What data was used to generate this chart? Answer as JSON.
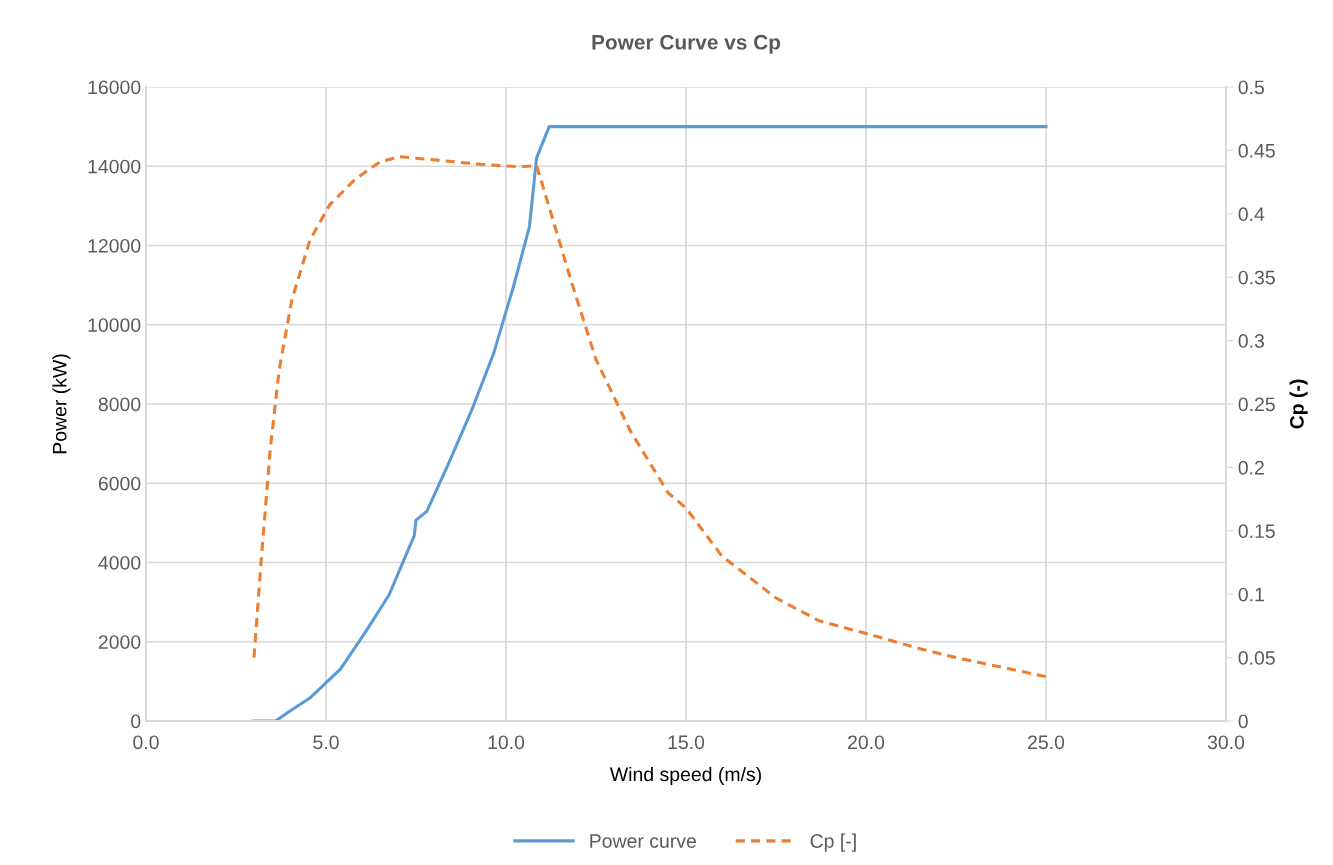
{
  "chart_data": {
    "type": "line",
    "title": "Power Curve vs Cp",
    "xlabel": "Wind speed (m/s)",
    "ylabel": "Power (kW)",
    "y2label": "Cp (-)",
    "xlim": [
      0,
      30
    ],
    "xticks": [
      {
        "value": 0,
        "label": "0.0"
      },
      {
        "value": 5,
        "label": "5.0"
      },
      {
        "value": 10,
        "label": "10.0"
      },
      {
        "value": 15,
        "label": "15.0"
      },
      {
        "value": 20,
        "label": "20.0"
      },
      {
        "value": 25,
        "label": "25.0"
      },
      {
        "value": 30,
        "label": "30.0"
      }
    ],
    "ylim": [
      0,
      16000
    ],
    "yticks": [
      0,
      2000,
      4000,
      6000,
      8000,
      10000,
      12000,
      14000,
      16000
    ],
    "y2lim": [
      0,
      0.5
    ],
    "y2ticks": [
      0,
      0.05,
      0.1,
      0.15,
      0.2,
      0.25,
      0.3,
      0.35,
      0.4,
      0.45,
      0.5
    ],
    "grid": true,
    "legend": "bottom",
    "series": [
      {
        "name": "Power curve",
        "color": "#5b9bd5",
        "line_style": "solid",
        "x": [
          3.0,
          3.6,
          4.0,
          4.55,
          5.4,
          6.1,
          6.75,
          7.2,
          7.45,
          7.5,
          7.8,
          8.4,
          9.05,
          9.65,
          10.2,
          10.65,
          10.85,
          11.2,
          25
        ],
        "values": [
          0,
          0,
          250,
          580,
          1310,
          2250,
          3180,
          4140,
          4670,
          5070,
          5290,
          6490,
          7850,
          9260,
          10940,
          12470,
          14210,
          15000,
          15000
        ]
      },
      {
        "name": "Cp [-]",
        "color": "#ed7d31",
        "line_style": "dashed",
        "axis": "y2",
        "x": [
          3.0,
          3.2,
          3.45,
          3.7,
          4.05,
          4.55,
          5.1,
          5.8,
          6.5,
          7.05,
          8.2,
          9.3,
          10.4,
          10.85,
          11.35,
          11.8,
          12.5,
          13.45,
          14.5,
          15.0,
          16.0,
          17.5,
          18.7,
          20.0,
          21.5,
          22.5,
          25.0
        ],
        "values": [
          0.05,
          0.127,
          0.214,
          0.277,
          0.332,
          0.379,
          0.407,
          0.427,
          0.441,
          0.445,
          0.442,
          0.439,
          0.437,
          0.438,
          0.391,
          0.348,
          0.285,
          0.229,
          0.18,
          0.168,
          0.13,
          0.097,
          0.079,
          0.069,
          0.057,
          0.05,
          0.035
        ]
      }
    ]
  }
}
